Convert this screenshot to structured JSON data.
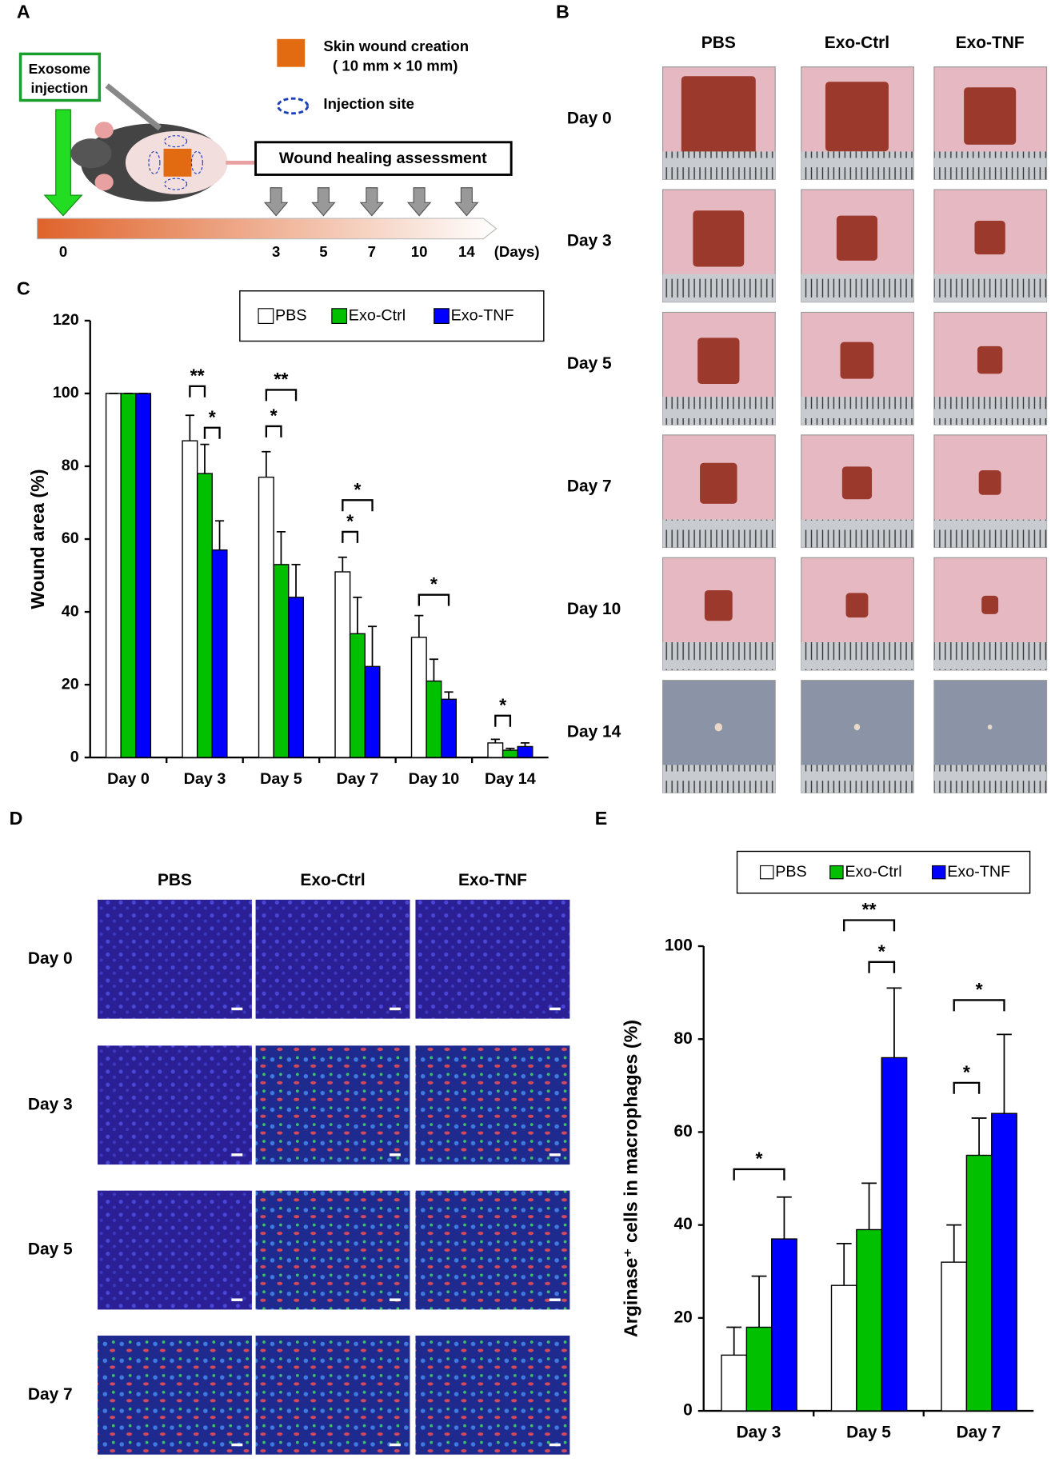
{
  "panel_labels": [
    "A",
    "B",
    "C",
    "D",
    "E"
  ],
  "diagram": {
    "injection_label": [
      "Exosome",
      "injection"
    ],
    "wound_legend": [
      "Skin wound creation",
      "( 10 mm × 10 mm)"
    ],
    "injection_site_legend": "Injection site",
    "assessment_label": "Wound healing assessment",
    "timeline_days": [
      0,
      3,
      5,
      7,
      10,
      14
    ],
    "timeline_unit": "(Days)"
  },
  "photo_grid_b": {
    "columns": [
      "PBS",
      "Exo-Ctrl",
      "Exo-TNF"
    ],
    "rows": [
      "Day 0",
      "Day 3",
      "Day 5",
      "Day 7",
      "Day 10",
      "Day 14"
    ]
  },
  "photo_grid_d": {
    "columns": [
      "PBS",
      "Exo-Ctrl",
      "Exo-TNF"
    ],
    "rows": [
      "Day 0",
      "Day 3",
      "Day 5",
      "Day 7"
    ]
  },
  "chart_data": [
    {
      "type": "bar",
      "ylabel": "Wound area (%)",
      "categories": [
        "Day 0",
        "Day 3",
        "Day 5",
        "Day 7",
        "Day 10",
        "Day 14"
      ],
      "series": [
        {
          "name": "PBS",
          "color": "#ffffff",
          "values": [
            100,
            87,
            77,
            51,
            33,
            4
          ],
          "errors": [
            0,
            7,
            7,
            4,
            6,
            1
          ]
        },
        {
          "name": "Exo-Ctrl",
          "color": "#00c000",
          "values": [
            100,
            78,
            53,
            34,
            21,
            2
          ],
          "errors": [
            0,
            8,
            9,
            10,
            6,
            0.5
          ]
        },
        {
          "name": "Exo-TNF",
          "color": "#0000ff",
          "values": [
            100,
            57,
            44,
            25,
            16,
            3
          ],
          "errors": [
            0,
            8,
            9,
            11,
            2,
            1
          ]
        }
      ],
      "ylim": [
        0,
        120
      ],
      "yticks": [
        0,
        20,
        40,
        60,
        80,
        100,
        120
      ],
      "annotations": [
        "**",
        "*",
        "**",
        "*",
        "*",
        "*",
        "*",
        "*"
      ],
      "legend": "top-right"
    },
    {
      "type": "bar",
      "ylabel": "Arginase⁺ cells in macrophages (%)",
      "categories": [
        "Day 3",
        "Day 5",
        "Day 7"
      ],
      "series": [
        {
          "name": "PBS",
          "color": "#ffffff",
          "values": [
            12,
            27,
            32
          ],
          "errors": [
            6,
            9,
            8
          ]
        },
        {
          "name": "Exo-Ctrl",
          "color": "#00c000",
          "values": [
            18,
            39,
            55
          ],
          "errors": [
            11,
            10,
            8
          ]
        },
        {
          "name": "Exo-TNF",
          "color": "#0000ff",
          "values": [
            37,
            76,
            64
          ],
          "errors": [
            9,
            15,
            17
          ]
        }
      ],
      "ylim": [
        0,
        100
      ],
      "yticks": [
        0,
        20,
        40,
        60,
        80,
        100
      ],
      "annotations": [
        "*",
        "**",
        "*",
        "*",
        "*"
      ],
      "legend": "top-right"
    }
  ]
}
